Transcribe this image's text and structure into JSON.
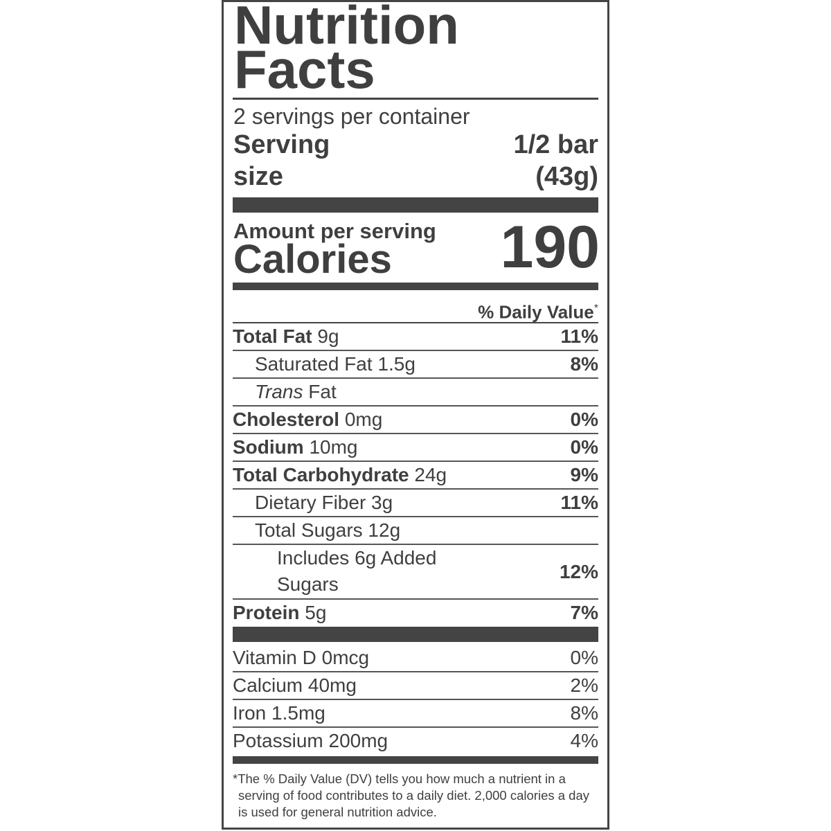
{
  "title_line1": "Nutrition",
  "title_line2": "Facts",
  "servings_per_container": "2 servings per container",
  "serving_size_label_1": "Serving",
  "serving_size_label_2": "size",
  "serving_size_value_1": "1/2 bar",
  "serving_size_value_2": "(43g)",
  "amount_per_serving": "Amount per serving",
  "calories_label": "Calories",
  "calories_value": "190",
  "daily_value_header": "% Daily Value",
  "daily_value_asterisk": "*",
  "nutrients": [
    {
      "name": "Total Fat",
      "amount": "9g",
      "dv": "11%"
    },
    {
      "name": "Saturated Fat",
      "amount": "1.5g",
      "dv": "8%"
    },
    {
      "name": "Trans",
      "amount": "Fat",
      "dv": ""
    },
    {
      "name": "Cholesterol",
      "amount": "0mg",
      "dv": "0%"
    },
    {
      "name": "Sodium",
      "amount": "10mg",
      "dv": "0%"
    },
    {
      "name": "Total Carbohydrate",
      "amount": "24g",
      "dv": "9%"
    },
    {
      "name": "Dietary Fiber",
      "amount": "3g",
      "dv": "11%"
    },
    {
      "name": "Total Sugars",
      "amount": "12g",
      "dv": ""
    },
    {
      "name": "Includes 6g Added",
      "amount": "Sugars",
      "dv": "12%"
    },
    {
      "name": "Protein",
      "amount": "5g",
      "dv": "7%"
    }
  ],
  "vitamins": [
    {
      "label": "Vitamin D 0mcg",
      "dv": "0%"
    },
    {
      "label": "Calcium 40mg",
      "dv": "2%"
    },
    {
      "label": "Iron 1.5mg",
      "dv": "8%"
    },
    {
      "label": "Potassium 200mg",
      "dv": "4%"
    }
  ],
  "footnote": "*The % Daily Value (DV) tells you how much a nutrient in a serving of food contributes to a daily diet. 2,000 calories a day is used for general nutrition advice.",
  "colors": {
    "ink": "#3f3f3f",
    "rule": "#444444"
  }
}
